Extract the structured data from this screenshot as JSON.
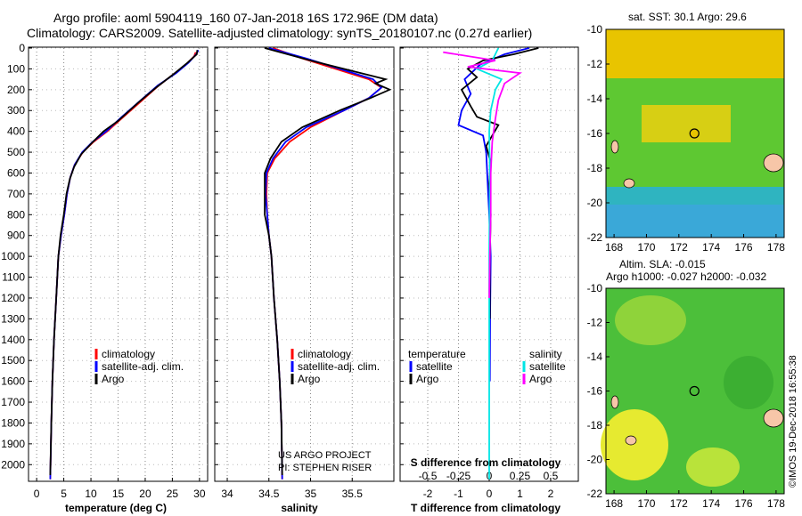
{
  "title": {
    "line1": "Argo profile: aoml 5904119_160 07-Jan-2018 16S 172.96E (DM data)",
    "line2": "Climatology: CARS2009. Satellite-adjusted climatology: synTS_20180107.nc (0.27d earlier)"
  },
  "credit": {
    "line1": "US ARGO PROJECT",
    "line2": "PI: STEPHEN RISER"
  },
  "stamp": "©IMOS 19-Dec-2018 16:55:38",
  "colors": {
    "climatology": "#ff0000",
    "satellite": "#0000ff",
    "argo": "#000000",
    "satellite_s": "#00e5e5",
    "argo_s": "#ff00ff",
    "ocean_warm": "#e8c400",
    "ocean_mid": "#5ec832",
    "ocean_cool": "#2fb4c0",
    "land": "#f7c6a8",
    "sla_green": "#4cbf3a",
    "sla_yellow": "#e6ea30"
  },
  "legends": {
    "temp": [
      "climatology",
      "satellite-adj. clim.",
      "Argo"
    ],
    "sal": [
      "climatology",
      "satellite-adj. clim.",
      "Argo"
    ],
    "diff_t_head": "temperature",
    "diff_s_head": "salinity",
    "diff_t": [
      "satellite",
      "Argo"
    ],
    "diff_s": [
      "satellite",
      "Argo"
    ]
  },
  "map_sst": {
    "title": "sat. SST: 30.1  Argo: 29.6"
  },
  "map_sla": {
    "title1": "Altim. SLA: -0.015",
    "title2": "Argo h1000: -0.027 h2000: -0.032"
  },
  "chart_data": [
    {
      "type": "line",
      "name": "temperature",
      "xlabel": "temperature (deg C)",
      "xlim": [
        -1.5,
        31.5
      ],
      "ylim": [
        2080,
        0
      ],
      "xticks": [
        0,
        5,
        10,
        15,
        20,
        25,
        30
      ],
      "yticks": [
        0,
        100,
        200,
        300,
        400,
        500,
        600,
        700,
        800,
        900,
        1000,
        1100,
        1200,
        1300,
        1400,
        1500,
        1600,
        1700,
        1800,
        1900,
        2000
      ],
      "series": [
        {
          "name": "climatology",
          "color": "#ff0000",
          "points": [
            [
              29.3,
              20
            ],
            [
              29.0,
              40
            ],
            [
              27.5,
              80
            ],
            [
              25.5,
              120
            ],
            [
              22.5,
              180
            ],
            [
              19.5,
              250
            ],
            [
              16.0,
              330
            ],
            [
              13.0,
              400
            ],
            [
              10.5,
              450
            ],
            [
              8.5,
              500
            ],
            [
              7.0,
              560
            ],
            [
              6.2,
              620
            ],
            [
              5.6,
              700
            ],
            [
              5.1,
              800
            ],
            [
              4.5,
              900
            ],
            [
              4.0,
              1000
            ],
            [
              3.6,
              1200
            ],
            [
              3.2,
              1400
            ],
            [
              2.9,
              1600
            ],
            [
              2.7,
              1800
            ],
            [
              2.5,
              2070
            ]
          ]
        },
        {
          "name": "satellite-adj. clim.",
          "color": "#0000ff",
          "points": [
            [
              29.8,
              10
            ],
            [
              29.4,
              30
            ],
            [
              28.0,
              70
            ],
            [
              25.7,
              120
            ],
            [
              22.3,
              180
            ],
            [
              19.2,
              250
            ],
            [
              15.7,
              330
            ],
            [
              12.8,
              400
            ],
            [
              10.3,
              450
            ],
            [
              8.4,
              500
            ],
            [
              7.0,
              560
            ],
            [
              6.2,
              620
            ],
            [
              5.6,
              700
            ],
            [
              5.1,
              800
            ],
            [
              4.5,
              900
            ],
            [
              4.0,
              1000
            ],
            [
              3.6,
              1200
            ],
            [
              3.2,
              1400
            ],
            [
              2.9,
              1600
            ],
            [
              2.7,
              1800
            ],
            [
              2.5,
              2070
            ]
          ]
        },
        {
          "name": "Argo",
          "color": "#000000",
          "points": [
            [
              29.6,
              10
            ],
            [
              29.5,
              30
            ],
            [
              27.8,
              70
            ],
            [
              25.0,
              130
            ],
            [
              22.0,
              190
            ],
            [
              18.8,
              260
            ],
            [
              15.0,
              350
            ],
            [
              12.3,
              400
            ],
            [
              10.0,
              460
            ],
            [
              8.2,
              510
            ],
            [
              6.9,
              570
            ],
            [
              6.1,
              630
            ],
            [
              5.5,
              700
            ],
            [
              5.0,
              800
            ],
            [
              4.4,
              900
            ],
            [
              4.0,
              1000
            ],
            [
              3.6,
              1200
            ],
            [
              3.2,
              1400
            ],
            [
              2.9,
              1600
            ],
            [
              2.7,
              1800
            ],
            [
              2.5,
              2050
            ]
          ]
        }
      ]
    },
    {
      "type": "line",
      "name": "salinity",
      "xlabel": "salinity",
      "xlim": [
        33.85,
        36.0
      ],
      "ylim": [
        2080,
        0
      ],
      "xticks": [
        34,
        34.5,
        35,
        35.5
      ],
      "series": [
        {
          "name": "climatology",
          "color": "#ff0000",
          "points": [
            [
              34.55,
              0
            ],
            [
              34.9,
              50
            ],
            [
              35.3,
              100
            ],
            [
              35.7,
              150
            ],
            [
              35.85,
              190
            ],
            [
              35.7,
              240
            ],
            [
              35.4,
              300
            ],
            [
              35.0,
              380
            ],
            [
              34.75,
              450
            ],
            [
              34.57,
              530
            ],
            [
              34.48,
              600
            ],
            [
              34.47,
              700
            ],
            [
              34.48,
              800
            ],
            [
              34.5,
              900
            ],
            [
              34.53,
              1000
            ],
            [
              34.56,
              1200
            ],
            [
              34.6,
              1400
            ],
            [
              34.63,
              1600
            ],
            [
              34.65,
              1800
            ],
            [
              34.66,
              2070
            ]
          ]
        },
        {
          "name": "satellite-adj. clim.",
          "color": "#0000ff",
          "points": [
            [
              34.5,
              0
            ],
            [
              34.95,
              50
            ],
            [
              35.35,
              100
            ],
            [
              35.75,
              150
            ],
            [
              35.85,
              190
            ],
            [
              35.7,
              240
            ],
            [
              35.4,
              300
            ],
            [
              34.95,
              380
            ],
            [
              34.7,
              450
            ],
            [
              34.55,
              530
            ],
            [
              34.47,
              600
            ],
            [
              34.46,
              700
            ],
            [
              34.48,
              800
            ],
            [
              34.5,
              900
            ],
            [
              34.53,
              1000
            ],
            [
              34.56,
              1200
            ],
            [
              34.6,
              1400
            ],
            [
              34.63,
              1600
            ],
            [
              34.65,
              1800
            ],
            [
              34.66,
              2070
            ]
          ]
        },
        {
          "name": "Argo",
          "color": "#000000",
          "points": [
            [
              34.45,
              0
            ],
            [
              35.0,
              60
            ],
            [
              35.5,
              110
            ],
            [
              35.9,
              150
            ],
            [
              35.78,
              170
            ],
            [
              35.95,
              200
            ],
            [
              35.72,
              240
            ],
            [
              35.35,
              300
            ],
            [
              34.9,
              380
            ],
            [
              34.65,
              450
            ],
            [
              34.52,
              530
            ],
            [
              34.45,
              600
            ],
            [
              34.45,
              700
            ],
            [
              34.45,
              800
            ],
            [
              34.5,
              900
            ],
            [
              34.53,
              1000
            ],
            [
              34.56,
              1200
            ],
            [
              34.6,
              1400
            ],
            [
              34.63,
              1600
            ],
            [
              34.65,
              1800
            ],
            [
              34.66,
              2050
            ]
          ]
        }
      ]
    },
    {
      "type": "line",
      "name": "differences",
      "xlabel": "T difference from climatology",
      "x2label": "S difference from climatology",
      "xlim": [
        -2.9,
        2.9
      ],
      "ylim": [
        2080,
        0
      ],
      "xticks": [
        -2,
        -1,
        0,
        1,
        2
      ],
      "x2ticks": [
        "-0.5",
        "-0.25",
        "0",
        "0.25",
        "0.5"
      ],
      "series": [
        {
          "name": "temperature satellite",
          "color": "#0000ff",
          "points": [
            [
              1.3,
              0
            ],
            [
              0.5,
              30
            ],
            [
              -0.3,
              80
            ],
            [
              -0.8,
              150
            ],
            [
              -0.6,
              220
            ],
            [
              -0.9,
              300
            ],
            [
              -1.0,
              370
            ],
            [
              -0.2,
              420
            ],
            [
              -0.1,
              500
            ],
            [
              -0.05,
              650
            ],
            [
              0.0,
              800
            ],
            [
              0.05,
              1000
            ],
            [
              0.03,
              1300
            ],
            [
              0.02,
              1600
            ]
          ]
        },
        {
          "name": "temperature Argo",
          "color": "#000000",
          "points": [
            [
              1.6,
              0
            ],
            [
              0.8,
              30
            ],
            [
              -0.2,
              60
            ],
            [
              -0.7,
              100
            ],
            [
              -0.4,
              140
            ],
            [
              -0.9,
              200
            ],
            [
              -0.6,
              280
            ],
            [
              -0.4,
              330
            ],
            [
              0.3,
              370
            ],
            [
              0.1,
              420
            ],
            [
              -0.1,
              470
            ],
            [
              0.05,
              550
            ],
            [
              0.0,
              650
            ],
            [
              0.05,
              800
            ],
            [
              0.02,
              1000
            ],
            [
              0.02,
              1300
            ]
          ]
        },
        {
          "name": "salinity satellite",
          "color": "#00e5e5",
          "points": [
            [
              0.3,
              0
            ],
            [
              0.1,
              60
            ],
            [
              -0.4,
              100
            ],
            [
              0.4,
              150
            ],
            [
              0.2,
              200
            ],
            [
              0.05,
              300
            ],
            [
              0.0,
              400
            ],
            [
              0.02,
              600
            ],
            [
              0.0,
              1000
            ],
            [
              0.0,
              2070
            ]
          ]
        },
        {
          "name": "salinity Argo",
          "color": "#ff00ff",
          "points": [
            [
              -1.5,
              20
            ],
            [
              0.2,
              60
            ],
            [
              -0.7,
              90
            ],
            [
              1.0,
              120
            ],
            [
              0.5,
              170
            ],
            [
              0.3,
              250
            ],
            [
              0.2,
              340
            ],
            [
              0.1,
              450
            ],
            [
              0.05,
              600
            ],
            [
              0.05,
              800
            ],
            [
              0.02,
              1000
            ],
            [
              0.0,
              1200
            ]
          ]
        }
      ]
    }
  ],
  "maps": {
    "sst": {
      "xlim": [
        167.5,
        178.5
      ],
      "ylim": [
        -22,
        -10
      ],
      "xticks": [
        168,
        170,
        172,
        174,
        176,
        178
      ],
      "yticks": [
        -10,
        -12,
        -14,
        -16,
        -18,
        -20,
        -22
      ],
      "argo": [
        172.96,
        -16
      ]
    },
    "sla": {
      "xlim": [
        167.5,
        178.5
      ],
      "ylim": [
        -22,
        -10
      ],
      "xticks": [
        168,
        170,
        172,
        174,
        176,
        178
      ],
      "yticks": [
        -10,
        -12,
        -14,
        -16,
        -18,
        -20,
        -22
      ],
      "argo": [
        172.96,
        -16
      ]
    }
  }
}
